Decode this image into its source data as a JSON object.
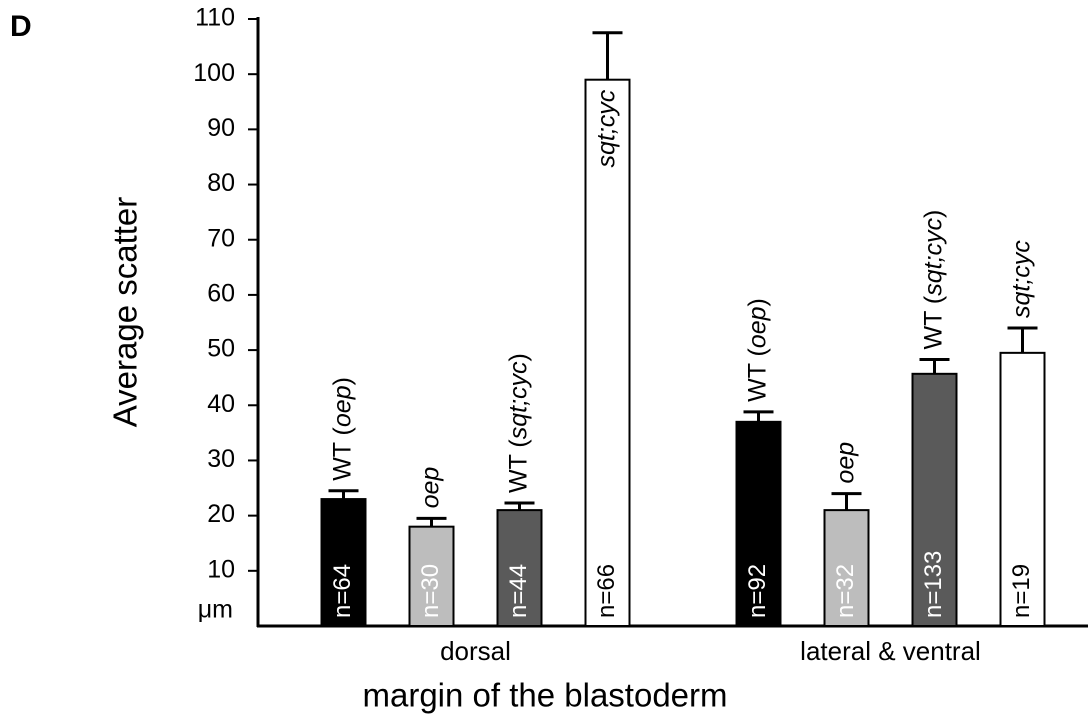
{
  "chart_data": {
    "type": "bar",
    "panel_label": "D",
    "y_label": "Average scatter",
    "y_unit": "μm",
    "x_label": "margin of the blastoderm",
    "categories": [
      "dorsal",
      "lateral & ventral"
    ],
    "series": [
      {
        "name": "WT (oep)",
        "color": "#000000",
        "values": [
          23,
          37
        ],
        "errors": [
          1.5,
          1.8
        ],
        "n_labels": [
          "n=64",
          "n=92"
        ]
      },
      {
        "name": "oep",
        "color": "#bdbdbd",
        "values": [
          18,
          21
        ],
        "errors": [
          1.5,
          3
        ],
        "n_labels": [
          "n=30",
          "n=32"
        ]
      },
      {
        "name": "WT (sqt;cyc)",
        "color": "#5a5a5a",
        "values": [
          21,
          45.7
        ],
        "errors": [
          1.3,
          2.6
        ],
        "n_labels": [
          "n=44",
          "n=133"
        ]
      },
      {
        "name": "sqt;cyc",
        "color": "#ffffff",
        "values": [
          99,
          49.5
        ],
        "errors": [
          8.5,
          4.5
        ],
        "n_labels": [
          "n=66",
          "n=19"
        ]
      }
    ],
    "ylim": [
      0,
      110
    ],
    "yticks": [
      10,
      20,
      30,
      40,
      50,
      60,
      70,
      80,
      90,
      100,
      110
    ]
  }
}
